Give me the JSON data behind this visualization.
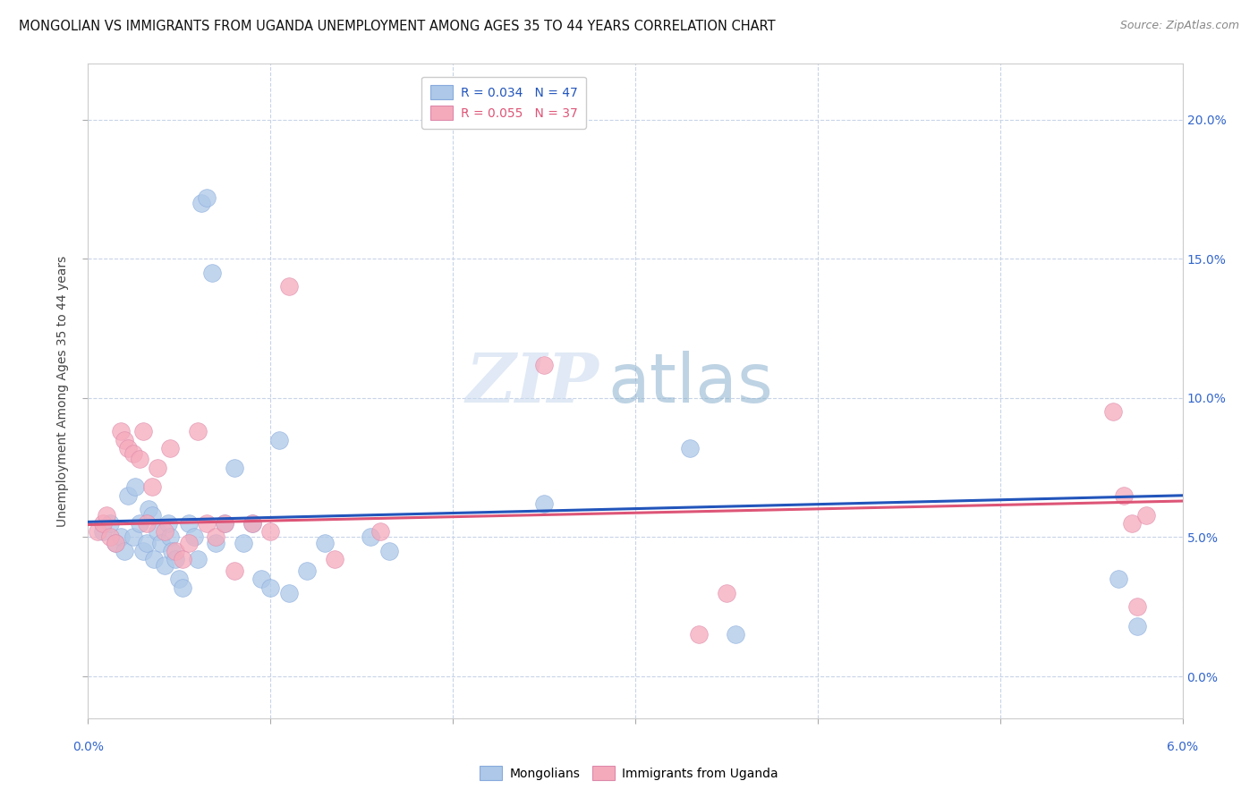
{
  "title": "MONGOLIAN VS IMMIGRANTS FROM UGANDA UNEMPLOYMENT AMONG AGES 35 TO 44 YEARS CORRELATION CHART",
  "source": "Source: ZipAtlas.com",
  "ylabel": "Unemployment Among Ages 35 to 44 years",
  "xlim": [
    0.0,
    6.0
  ],
  "ylim": [
    -1.5,
    22.0
  ],
  "ytick_values": [
    0.0,
    5.0,
    10.0,
    15.0,
    20.0
  ],
  "xtick_values": [
    0.0,
    1.0,
    2.0,
    3.0,
    4.0,
    5.0,
    6.0
  ],
  "legend1_label": "R = 0.034   N = 47",
  "legend2_label": "R = 0.055   N = 37",
  "mongolians_color": "#adc8e8",
  "uganda_color": "#f5aabb",
  "trendline_mongolians_color": "#2255bb",
  "trendline_uganda_color": "#dd5577",
  "watermark_zip": "ZIP",
  "watermark_atlas": "atlas",
  "mongolians_x": [
    0.08,
    0.12,
    0.15,
    0.18,
    0.2,
    0.22,
    0.25,
    0.26,
    0.28,
    0.3,
    0.32,
    0.33,
    0.35,
    0.36,
    0.38,
    0.4,
    0.42,
    0.44,
    0.45,
    0.46,
    0.48,
    0.5,
    0.52,
    0.55,
    0.58,
    0.6,
    0.62,
    0.65,
    0.68,
    0.7,
    0.75,
    0.8,
    0.85,
    0.9,
    0.95,
    1.0,
    1.05,
    1.1,
    1.2,
    1.3,
    1.55,
    1.65,
    2.5,
    3.3,
    3.55,
    5.65,
    5.75
  ],
  "mongolians_y": [
    5.2,
    5.5,
    4.8,
    5.0,
    4.5,
    6.5,
    5.0,
    6.8,
    5.5,
    4.5,
    4.8,
    6.0,
    5.8,
    4.2,
    5.2,
    4.8,
    4.0,
    5.5,
    5.0,
    4.5,
    4.2,
    3.5,
    3.2,
    5.5,
    5.0,
    4.2,
    17.0,
    17.2,
    14.5,
    4.8,
    5.5,
    7.5,
    4.8,
    5.5,
    3.5,
    3.2,
    8.5,
    3.0,
    3.8,
    4.8,
    5.0,
    4.5,
    6.2,
    8.2,
    1.5,
    3.5,
    1.8
  ],
  "uganda_x": [
    0.05,
    0.08,
    0.1,
    0.12,
    0.15,
    0.18,
    0.2,
    0.22,
    0.25,
    0.28,
    0.3,
    0.32,
    0.35,
    0.38,
    0.42,
    0.45,
    0.48,
    0.52,
    0.55,
    0.6,
    0.65,
    0.7,
    0.75,
    0.8,
    0.9,
    1.0,
    1.1,
    1.35,
    1.6,
    2.5,
    3.35,
    3.5,
    5.62,
    5.68,
    5.72,
    5.75,
    5.8
  ],
  "uganda_y": [
    5.2,
    5.5,
    5.8,
    5.0,
    4.8,
    8.8,
    8.5,
    8.2,
    8.0,
    7.8,
    8.8,
    5.5,
    6.8,
    7.5,
    5.2,
    8.2,
    4.5,
    4.2,
    4.8,
    8.8,
    5.5,
    5.0,
    5.5,
    3.8,
    5.5,
    5.2,
    14.0,
    4.2,
    5.2,
    11.2,
    1.5,
    3.0,
    9.5,
    6.5,
    5.5,
    2.5,
    5.8
  ],
  "mongolians_trend": [
    5.55,
    6.5
  ],
  "uganda_trend": [
    5.45,
    6.3
  ],
  "background_color": "#ffffff",
  "grid_color": "#c8d4e8",
  "title_fontsize": 10.5,
  "source_fontsize": 9,
  "axis_label_fontsize": 10,
  "tick_fontsize": 10,
  "legend_fontsize": 10,
  "dot_size": 200,
  "dot_alpha": 0.75
}
